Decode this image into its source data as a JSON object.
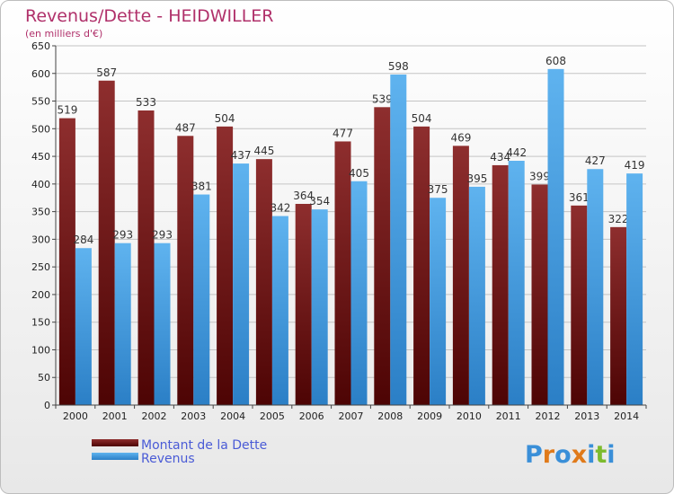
{
  "chart_data": {
    "type": "bar",
    "title": "Revenus/Dette - HEIDWILLER",
    "subtitle": "(en milliers d'€)",
    "categories": [
      "2000",
      "2001",
      "2002",
      "2003",
      "2004",
      "2005",
      "2006",
      "2007",
      "2008",
      "2009",
      "2010",
      "2011",
      "2012",
      "2013",
      "2014"
    ],
    "series": [
      {
        "name": "Montant de la Dette",
        "color": "#8b2a2a",
        "values": [
          519,
          587,
          533,
          487,
          504,
          445,
          364,
          477,
          539,
          504,
          469,
          434,
          399,
          361,
          322
        ]
      },
      {
        "name": "Revenus",
        "color": "#4aa3e8",
        "values": [
          284,
          293,
          293,
          381,
          437,
          342,
          354,
          405,
          598,
          375,
          395,
          442,
          608,
          427,
          419
        ]
      }
    ],
    "ylim": [
      0,
      650
    ],
    "yticks": [
      0,
      50,
      100,
      150,
      200,
      250,
      300,
      350,
      400,
      450,
      500,
      550,
      600,
      650
    ],
    "grid": true,
    "legend_position": "bottom-left"
  },
  "logo": {
    "letters": [
      "P",
      "r",
      "o",
      "x",
      "i",
      "t",
      "i"
    ],
    "colors": [
      "#3a8fd8",
      "#e07a1a",
      "#3a8fd8",
      "#e07a1a",
      "#3a8fd8",
      "#7dbb2e",
      "#3a8fd8"
    ]
  }
}
